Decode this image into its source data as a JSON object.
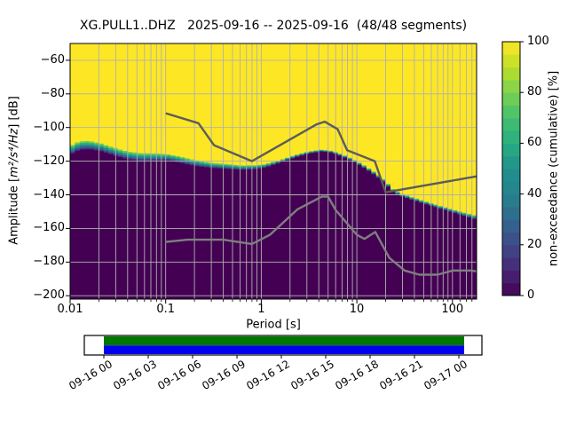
{
  "chart_data": {
    "type": "heatmap",
    "title": "XG.PULL1..DHZ   2025-09-16 -- 2025-09-16  (48/48 segments)",
    "xlabel": "Period [s]",
    "ylabel_prefix": "Amplitude [",
    "ylabel_math": "m²/s⁴/Hz",
    "ylabel_suffix": "] [dB]",
    "colorbar_label": "non-exceedance (cumulative) [%]",
    "xlim": [
      0.01,
      179
    ],
    "ylim": [
      -202,
      -50
    ],
    "grid": true,
    "grid_color": "#b0b0b0",
    "x_major_ticks": [
      {
        "value": 0.01,
        "label": "0.01"
      },
      {
        "value": 0.1,
        "label": "0.1"
      },
      {
        "value": 1,
        "label": "1"
      },
      {
        "value": 10,
        "label": "10"
      },
      {
        "value": 100,
        "label": "100"
      }
    ],
    "x_minor_ticks": [
      0.02,
      0.03,
      0.04,
      0.05,
      0.06,
      0.07,
      0.08,
      0.09,
      0.2,
      0.3,
      0.4,
      0.5,
      0.6,
      0.7,
      0.8,
      0.9,
      2,
      3,
      4,
      5,
      6,
      7,
      8,
      9,
      20,
      30,
      40,
      50,
      60,
      70,
      80,
      90,
      120,
      140,
      160
    ],
    "y_ticks": [
      {
        "value": -60,
        "label": "−60"
      },
      {
        "value": -80,
        "label": "−80"
      },
      {
        "value": -100,
        "label": "−100"
      },
      {
        "value": -120,
        "label": "−120"
      },
      {
        "value": -140,
        "label": "−140"
      },
      {
        "value": -160,
        "label": "−160"
      },
      {
        "value": -180,
        "label": "−180"
      },
      {
        "value": -200,
        "label": "−200"
      }
    ],
    "colorbar": {
      "range": [
        0,
        100
      ],
      "steps": 20,
      "ticks": [
        {
          "value": 0,
          "label": "0"
        },
        {
          "value": 20,
          "label": "20"
        },
        {
          "value": 40,
          "label": "40"
        },
        {
          "value": 60,
          "label": "60"
        },
        {
          "value": 80,
          "label": "80"
        },
        {
          "value": 100,
          "label": "100"
        }
      ]
    },
    "viridis_anchors": [
      "#440154",
      "#482878",
      "#3e4989",
      "#31688e",
      "#26828e",
      "#21918c",
      "#28ae80",
      "#44bf70",
      "#7ad151",
      "#bddf26",
      "#fde725"
    ],
    "noise_models": {
      "nhnm_color": "#5c5c5c",
      "nlnm_color": "#7f7f7f",
      "nhnm": [
        [
          0.1,
          -91.5
        ],
        [
          0.22,
          -97.4
        ],
        [
          0.32,
          -110.5
        ],
        [
          0.8,
          -120.0
        ],
        [
          3.8,
          -98.1
        ],
        [
          4.6,
          -96.5
        ],
        [
          6.3,
          -101.0
        ],
        [
          7.9,
          -113.5
        ],
        [
          15.4,
          -120.0
        ],
        [
          20.0,
          -138.5
        ],
        [
          179,
          -129.0
        ]
      ],
      "nlnm": [
        [
          0.1,
          -168.0
        ],
        [
          0.17,
          -166.7
        ],
        [
          0.4,
          -166.7
        ],
        [
          0.8,
          -169.2
        ],
        [
          1.24,
          -163.7
        ],
        [
          2.4,
          -148.6
        ],
        [
          4.3,
          -141.1
        ],
        [
          5.0,
          -141.1
        ],
        [
          6.0,
          -149.0
        ],
        [
          10.0,
          -163.8
        ],
        [
          12.0,
          -166.2
        ],
        [
          15.6,
          -162.1
        ],
        [
          21.9,
          -177.5
        ],
        [
          31.6,
          -185.0
        ],
        [
          45.0,
          -187.5
        ],
        [
          70.0,
          -187.5
        ],
        [
          101.0,
          -185.0
        ],
        [
          154.0,
          -185.0
        ],
        [
          179,
          -185.5
        ]
      ]
    },
    "cumulative_boundary": {
      "bin_decades": 0.05,
      "points": [
        [
          0.0105,
          -115.5,
          -110.5
        ],
        [
          0.0125,
          -113.2,
          -108.2
        ],
        [
          0.016,
          -112.8,
          -108.0
        ],
        [
          0.021,
          -114.0,
          -109.5
        ],
        [
          0.028,
          -116.3,
          -111.8
        ],
        [
          0.04,
          -118.8,
          -114.3
        ],
        [
          0.055,
          -119.8,
          -115.3
        ],
        [
          0.08,
          -119.6,
          -115.4
        ],
        [
          0.105,
          -119.4,
          -115.9
        ],
        [
          0.14,
          -120.8,
          -117.2
        ],
        [
          0.2,
          -122.8,
          -119.3
        ],
        [
          0.3,
          -124.0,
          -121.0
        ],
        [
          0.45,
          -124.6,
          -121.8
        ],
        [
          0.62,
          -125.2,
          -122.6
        ],
        [
          0.85,
          -124.8,
          -122.4
        ],
        [
          1.1,
          -123.8,
          -121.8
        ],
        [
          1.6,
          -120.8,
          -119.2
        ],
        [
          2.3,
          -117.6,
          -116.2
        ],
        [
          3.2,
          -115.4,
          -114.2
        ],
        [
          4.3,
          -114.2,
          -113.1
        ],
        [
          5.5,
          -115.0,
          -113.9
        ],
        [
          7.0,
          -117.2,
          -115.9
        ],
        [
          8.8,
          -119.8,
          -118.4
        ],
        [
          11,
          -122.8,
          -121.3
        ],
        [
          14,
          -126.6,
          -125.0
        ],
        [
          17.5,
          -130.6,
          -129.0
        ],
        [
          21,
          -135.0,
          -133.3
        ],
        [
          24,
          -138.6,
          -136.9
        ],
        [
          29,
          -140.8,
          -139.2
        ],
        [
          36,
          -142.6,
          -141.0
        ],
        [
          48,
          -144.9,
          -143.3
        ],
        [
          65,
          -147.2,
          -145.6
        ],
        [
          88,
          -149.5,
          -147.8
        ],
        [
          120,
          -151.8,
          -149.9
        ],
        [
          160,
          -154.0,
          -151.8
        ],
        [
          179,
          -155.0,
          -152.6
        ]
      ]
    },
    "timeline": {
      "labels": [
        "09-16 00",
        "09-16 03",
        "09-16 06",
        "09-16 09",
        "09-16 12",
        "09-16 15",
        "09-16 18",
        "09-16 21",
        "09-17 00"
      ],
      "top_bar_color": "#007800",
      "bottom_bar_color": "#0000ee"
    }
  }
}
